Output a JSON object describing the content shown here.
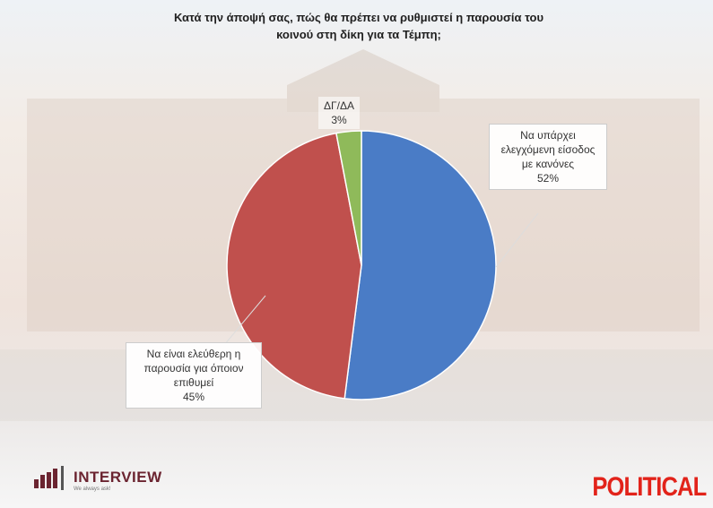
{
  "chart_data": {
    "type": "pie",
    "title": "Κατά την άποψή σας, πώς θα πρέπει να ρυθμιστεί η παρουσία του κοινού στη δίκη για τα Τέμπη;",
    "categories": [
      "Να υπάρχει ελεγχόμενη είσοδος με κανόνες",
      "Να είναι ελεύθερη η παρουσία για όποιον επιθυμεί",
      "ΔΓ/ΔΑ"
    ],
    "values": [
      52,
      45,
      3
    ],
    "value_labels": [
      "52%",
      "45%",
      "3%"
    ],
    "colors": [
      "#4a7cc6",
      "#c0504d",
      "#8fba5a"
    ]
  },
  "branding": {
    "pollster": "INTERVIEW",
    "tagline": "We always ask!",
    "outlet": "POLITICAL"
  }
}
